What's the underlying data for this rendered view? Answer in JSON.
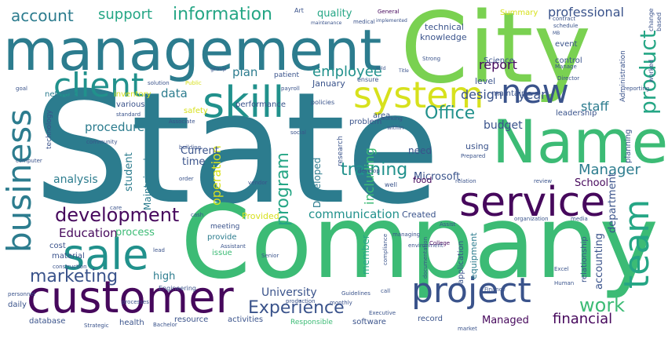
{
  "palette": {
    "dark_purple": "#46085c",
    "indigo": "#3a538b",
    "teal_blue": "#2c7c8e",
    "teal": "#21918c",
    "sea_green": "#25a685",
    "green": "#3cbb75",
    "lime": "#7ad151",
    "yellow": "#d7e11d",
    "background": "#ffffff"
  },
  "words": {
    "state": "State",
    "company": "Company",
    "city": "City",
    "management": "management",
    "name": "Name",
    "customer": "customer",
    "service": "service",
    "project": "project",
    "system": "system",
    "skill": "skill",
    "sale": "sale",
    "client": "client",
    "business": "business",
    "team": "team",
    "new": "new",
    "product": "product",
    "development": "development",
    "experience": "Experience",
    "marketing": "marketing",
    "work": "work",
    "training": "training",
    "account": "account",
    "support": "support",
    "information": "information",
    "professional": "professional",
    "office": "Office",
    "employee": "employee",
    "manager": "Manager",
    "program": "program",
    "financial": "financial",
    "communication": "communication",
    "report": "report",
    "year": "year",
    "education": "Education",
    "staff": "staff",
    "data": "data",
    "design": "design",
    "plan": "plan",
    "operation": "operation",
    "including": "including",
    "procedure": "procedure",
    "analysis": "analysis",
    "accounting": "accounting",
    "department": "department",
    "university": "University",
    "high": "high",
    "process": "process",
    "quality": "quality",
    "budget": "budget",
    "school": "School",
    "microsoft": "Microsoft",
    "managed": "Managed",
    "current": "Current",
    "time": "time",
    "student": "student",
    "maintained": "Maintained",
    "developed": "Developed",
    "member": "member",
    "provided": "Provided",
    "created": "Created",
    "need": "need",
    "food": "food",
    "level": "level",
    "using": "using",
    "january": "January",
    "technical": "technical",
    "knowledge": "knowledge",
    "science": "Science",
    "event": "event",
    "control": "control",
    "maintain": "maintain",
    "summary": "Summary",
    "leadership": "leadership",
    "various": "various",
    "safety": "safety",
    "performance": "performance",
    "patient": "patient",
    "area": "area",
    "problem": "problem",
    "policies": "policies",
    "network": "network",
    "inventory": "inventory",
    "provide": "provide",
    "meeting": "meeting",
    "issue": "issue",
    "cost": "cost",
    "material": "material",
    "daily": "daily",
    "database": "database",
    "health": "health",
    "resource": "resource",
    "activities": "activities",
    "responsible": "Responsible",
    "software": "software",
    "record": "record",
    "equipment": "equipment",
    "relationship": "relationship",
    "application": "application",
    "planning": "planning",
    "research": "research",
    "art": "Art",
    "general": "General",
    "medical": "medical",
    "schedule": "schedule",
    "contract": "contract",
    "change": "change",
    "based": "based",
    "manage": "Manage",
    "director": "Director",
    "worked": "worked",
    "administration": "Administration",
    "reporting": "reporting",
    "ensure": "ensure",
    "well": "well",
    "develop": "develop",
    "environment": "environment",
    "college": "College",
    "assist": "Assist",
    "organization": "organization",
    "engineering": "Engineering",
    "construction": "construction",
    "personnel": "personnel",
    "bachelor": "Bachelor",
    "strategic": "Strategic",
    "production": "production",
    "executive": "Executive",
    "monthly": "monthly",
    "finance": "Finance",
    "human": "Human",
    "excel": "Excel",
    "market": "market",
    "media": "media",
    "associate": "Associate",
    "senior": "Senior",
    "public": "Public",
    "solution": "solution",
    "technology": "technology",
    "standard": "standard",
    "community": "community",
    "computer": "computer",
    "order": "order",
    "vendor": "vendor",
    "cash": "cash",
    "care": "care",
    "building": "building",
    "social": "social",
    "goal": "goal",
    "group": "group",
    "strong": "Strong",
    "payroll": "payroll",
    "prepared": "Prepared",
    "relation": "relation",
    "review": "review",
    "working": "working",
    "within": "within",
    "managing": "managing",
    "compliance": "compliance",
    "documentation": "documentation",
    "lead": "lead",
    "assistant": "Assistant",
    "call": "call",
    "guidelines": "Guidelines",
    "processes": "processes",
    "maintenance": "maintenance",
    "implemented": "implemented",
    "sold": "sold",
    "mb": "MB",
    "title": "Title"
  }
}
